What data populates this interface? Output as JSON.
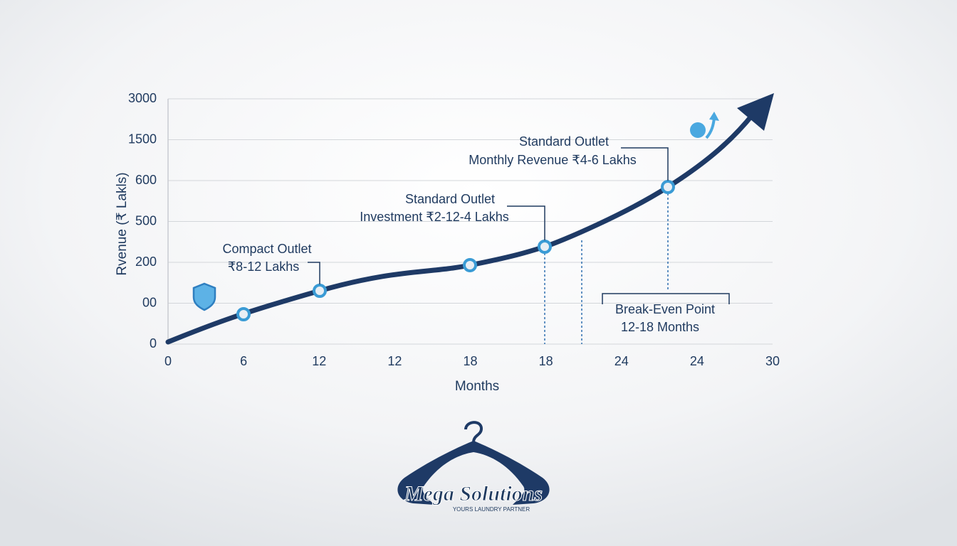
{
  "figure": {
    "y_axis_label": "Rvenue (₹ Lakls)",
    "x_axis_label": "Months",
    "y_tick_labels": [
      "3000",
      "1500",
      "600",
      "500",
      "200",
      "00",
      "0"
    ],
    "x_tick_labels": [
      "0",
      "6",
      "12",
      "12",
      "18",
      "18",
      "24",
      "24",
      "30"
    ],
    "annotations": [
      {
        "lines": [
          "Compact Outlet",
          "₹8-12 Lakhs"
        ]
      },
      {
        "lines": [
          "Standard Outlet",
          "Investment ₹2-12-4 Lakhs"
        ]
      },
      {
        "lines": [
          "Standard Outlet",
          "Monthly Revenue ₹4-6 Lakhs"
        ]
      },
      {
        "lines": [
          "Break-Even Point",
          "12-18 Months"
        ]
      }
    ]
  },
  "logo": {
    "name": "Mega Solutions",
    "tagline": "YOURS LAUNDRY PARTNER"
  }
}
